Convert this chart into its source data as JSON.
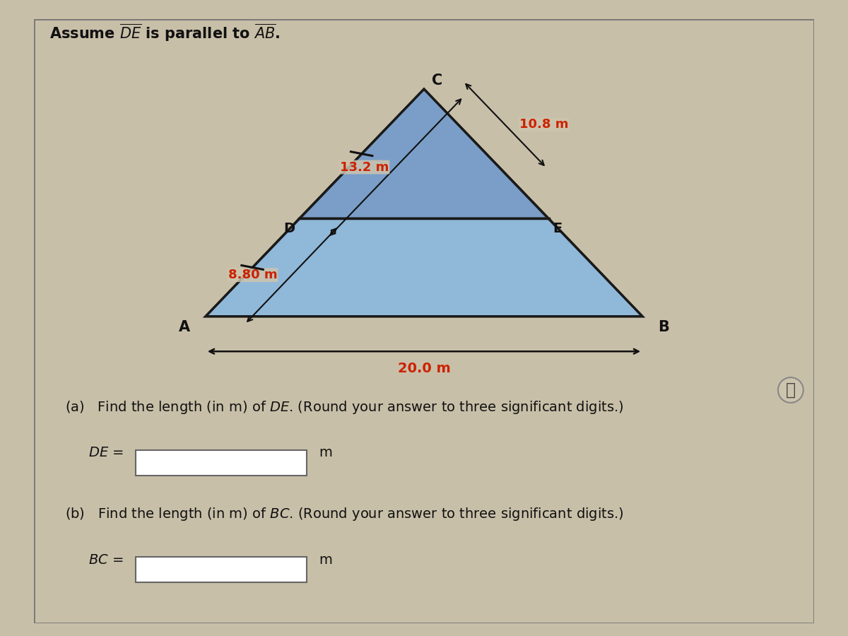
{
  "bg_color": "#c8bfa8",
  "panel_color": "#cdc4ad",
  "tri_upper_fill": "#7a9ec8",
  "tri_lower_fill": "#90b8d8",
  "tri_edge": "#1a1a1a",
  "red": "#cc2200",
  "black": "#111111",
  "white": "#ffffff",
  "gray_border": "#666666",
  "dim_cd": "13.2 m",
  "dim_ce": "10.8 m",
  "dim_ad": "8.80 m",
  "dim_ab": "20.0 m",
  "title": "Assume $\\overline{DE}$ is parallel to $\\overline{AB}$.",
  "q_a": "(a)   Find the length (in m) of $DE$. (Round your answer to three significant digits.)",
  "q_b": "(b)   Find the length (in m) of $BC$. (Round your answer to three significant digits.)",
  "label_de": "$DE$ =",
  "label_bc": "$BC$ =",
  "unit": "m",
  "info": "ⓘ",
  "A": [
    0.22,
    0.15
  ],
  "B": [
    0.78,
    0.15
  ],
  "C": [
    0.5,
    0.8
  ],
  "D": [
    0.34,
    0.43
  ],
  "E": [
    0.66,
    0.43
  ]
}
